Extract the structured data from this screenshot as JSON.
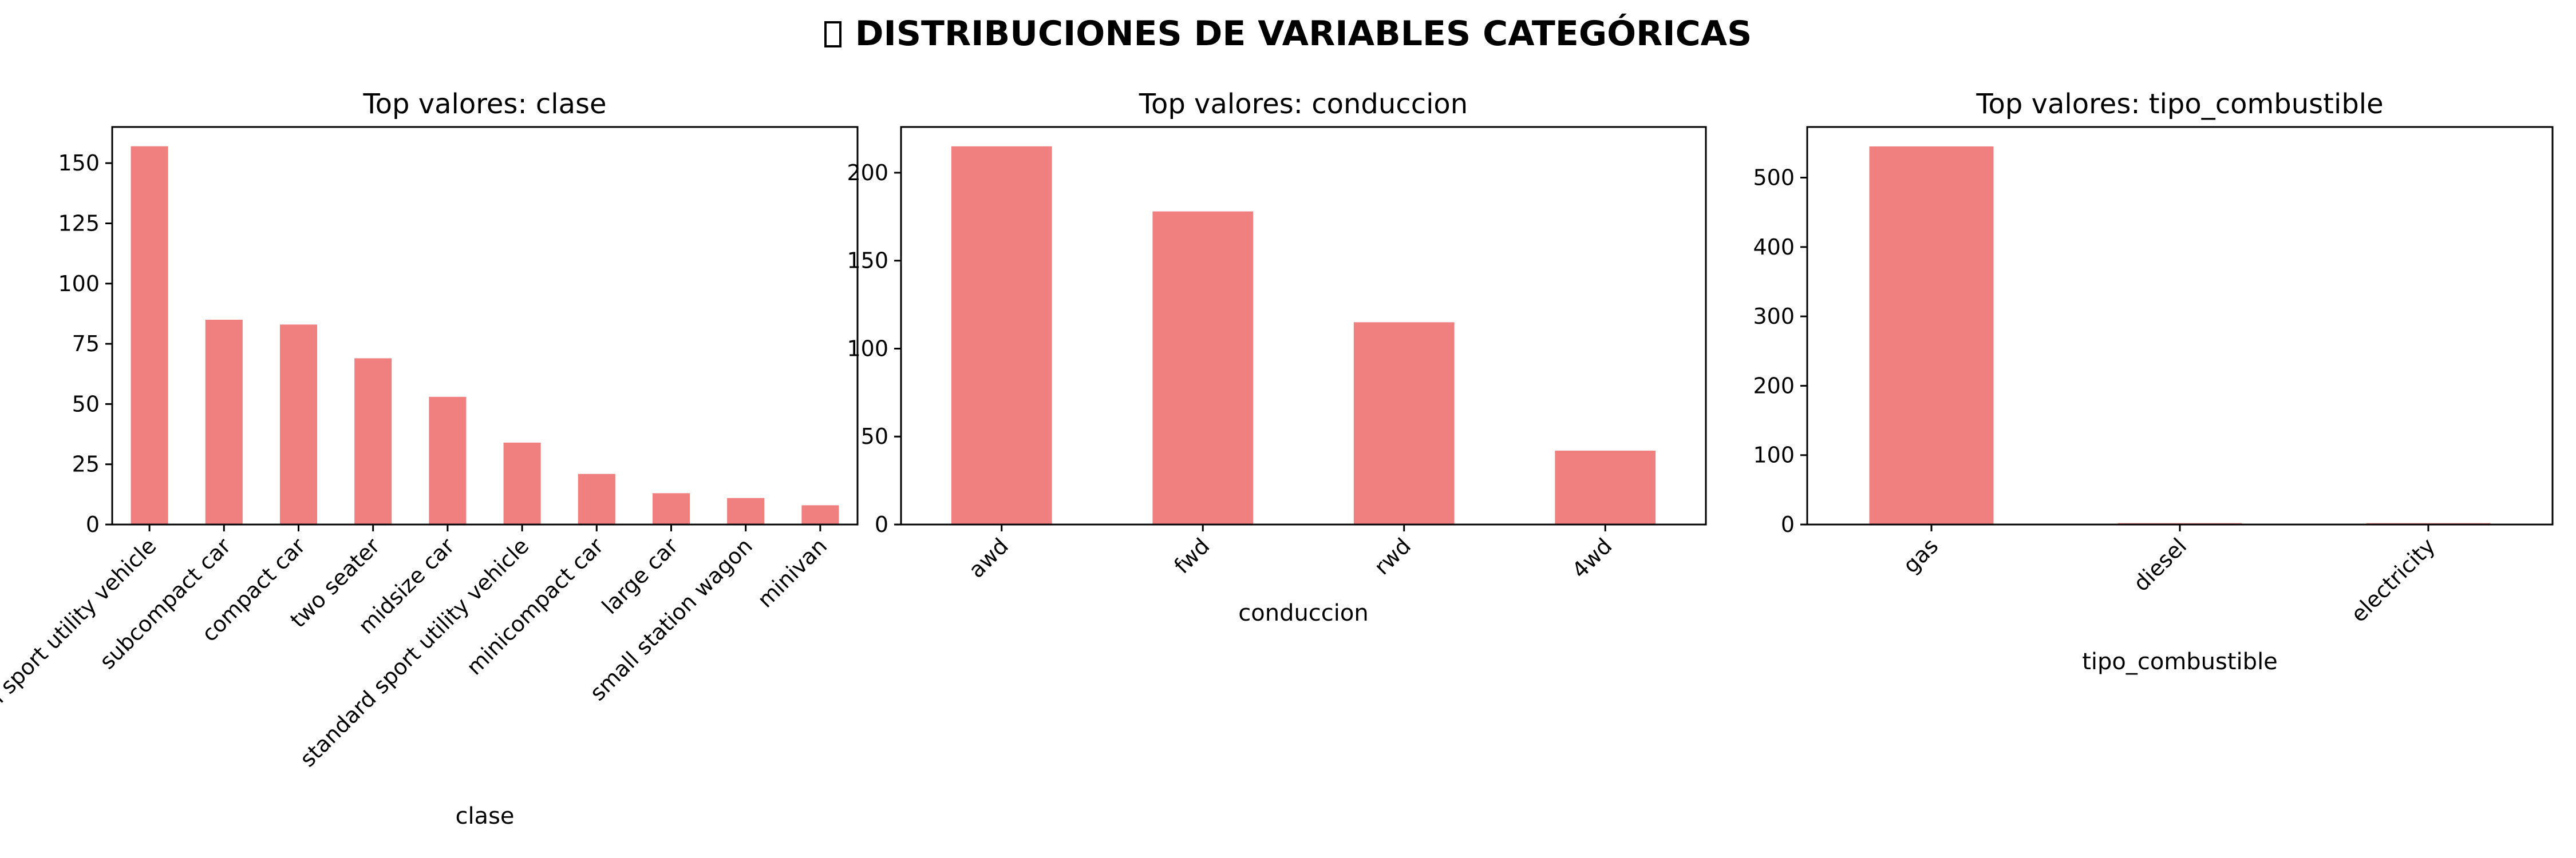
{
  "figure": {
    "title": "DISTRIBUCIONES DE VARIABLES CATEGÓRICAS",
    "title_icon": "box-glyph-icon",
    "bar_color": "#f08080"
  },
  "chart_data": [
    {
      "type": "bar",
      "title": "Top valores: clase",
      "xlabel": "clase",
      "ylabel": "",
      "categories": [
        "small sport utility vehicle",
        "subcompact car",
        "compact car",
        "two seater",
        "midsize car",
        "standard sport utility vehicle",
        "minicompact car",
        "large car",
        "small station wagon",
        "minivan"
      ],
      "values": [
        157,
        85,
        83,
        69,
        53,
        34,
        21,
        13,
        11,
        8
      ],
      "ylim": [
        0,
        165
      ],
      "yticks": [
        0,
        25,
        50,
        75,
        100,
        125,
        150
      ],
      "grid": false
    },
    {
      "type": "bar",
      "title": "Top valores: conduccion",
      "xlabel": "conduccion",
      "ylabel": "",
      "categories": [
        "awd",
        "fwd",
        "rwd",
        "4wd"
      ],
      "values": [
        215,
        178,
        115,
        42
      ],
      "ylim": [
        0,
        226
      ],
      "yticks": [
        0,
        50,
        100,
        150,
        200
      ],
      "grid": false
    },
    {
      "type": "bar",
      "title": "Top valores: tipo_combustible",
      "xlabel": "tipo_combustible",
      "ylabel": "",
      "categories": [
        "gas",
        "diesel",
        "electricity"
      ],
      "values": [
        545,
        2,
        2
      ],
      "ylim": [
        0,
        573
      ],
      "yticks": [
        0,
        100,
        200,
        300,
        400,
        500
      ],
      "grid": false
    }
  ]
}
